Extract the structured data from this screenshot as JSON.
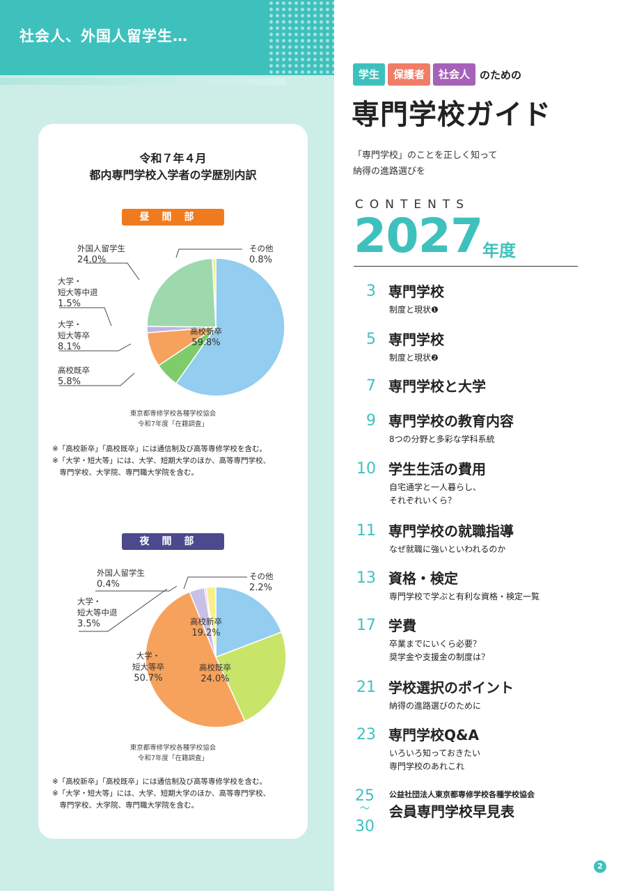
{
  "left": {
    "header_title": "社会人、外国人留学生…",
    "card_title_line1": "令和７年４月",
    "card_title_line2": "都内専門学校入学者の学歴別内訳",
    "day": {
      "label": "昼間部",
      "label_color": "#f07b1e",
      "labels": {
        "foreign": "外国人留学生\n",
        "foreign_val": "24.0%",
        "other": "その他\n",
        "other_val": "0.8%",
        "dropout": "大学・\n短大等中退\n",
        "dropout_val": "1.5%",
        "univ": "大学・\n短大等卒\n",
        "univ_val": "8.1%",
        "grad": "高校既卒\n",
        "grad_val": "5.8%",
        "new": "高校新卒\n",
        "new_val": "59.8%"
      },
      "source_line1": "東京都専修学校各種学校協会",
      "source_line2": "令和7年度「在籍調査」",
      "note1": "※「高校新卒」「高校既卒」には通信制及び高等専修学校を含む。",
      "note2": "※「大学・短大等」には、大学、短期大学のほか、高等専門学校、",
      "note3": "　専門学校、大学院、専門職大学院を含む。"
    },
    "night": {
      "label": "夜間部",
      "label_color": "#4b4a8c",
      "labels": {
        "foreign": "外国人留学生\n",
        "foreign_val": "0.4%",
        "other": "その他\n",
        "other_val": "2.2%",
        "dropout": "大学・\n短大等中退\n",
        "dropout_val": "3.5%",
        "univ": "大学・\n短大等卒\n",
        "univ_val": "50.7%",
        "grad": "高校既卒\n",
        "grad_val": "24.0%",
        "new": "高校新卒\n",
        "new_val": "19.2%"
      },
      "source_line1": "東京都専修学校各種学校協会",
      "source_line2": "令和7年度「在籍調査」",
      "note1": "※「高校新卒」「高校既卒」には通信制及び高等専修学校を含む。",
      "note2": "※「大学・短大等」には、大学、短期大学のほか、高等専門学校、",
      "note3": "　専門学校、大学院、専門職大学院を含む。"
    }
  },
  "chart_data": [
    {
      "type": "pie",
      "title": "昼間部",
      "categories": [
        "高校新卒",
        "高校既卒",
        "大学・短大等卒",
        "大学・短大等中退",
        "外国人留学生",
        "その他"
      ],
      "values": [
        59.8,
        5.8,
        8.1,
        1.5,
        24.0,
        0.8
      ],
      "colors": [
        "#93cdf0",
        "#7fcc6a",
        "#f6a25c",
        "#bcb6e0",
        "#9dd9ad",
        "#f4ee8e"
      ]
    },
    {
      "type": "pie",
      "title": "夜間部",
      "categories": [
        "高校新卒",
        "高校既卒",
        "大学・短大等卒",
        "大学・短大等中退",
        "外国人留学生",
        "その他"
      ],
      "values": [
        19.2,
        24.0,
        50.7,
        3.5,
        0.4,
        2.2
      ],
      "colors": [
        "#93cdf0",
        "#c8e56a",
        "#f6a25c",
        "#c9c0e6",
        "#f3a4c8",
        "#f7ef8c"
      ]
    }
  ],
  "right": {
    "tags": [
      {
        "label": "学生",
        "color": "#3ec1bd"
      },
      {
        "label": "保護者",
        "color": "#ef7d67"
      },
      {
        "label": "社会人",
        "color": "#a662b8"
      }
    ],
    "tag_suffix": "のための",
    "title": "専門学校ガイド",
    "subtitle_line1": "「専門学校」のことを正しく知って",
    "subtitle_line2": "納得の進路選びを",
    "contents_label": "CONTENTS",
    "year": "2027",
    "year_suffix": "年度",
    "toc": [
      {
        "num": "3",
        "title": "専門学校",
        "desc": "制度と現状❶"
      },
      {
        "num": "5",
        "title": "専門学校",
        "desc": "制度と現状❷"
      },
      {
        "num": "7",
        "title": "専門学校と大学",
        "desc": ""
      },
      {
        "num": "9",
        "title": "専門学校の教育内容",
        "desc": "8つの分野と多彩な学科系統"
      },
      {
        "num": "10",
        "title": "学生生活の費用",
        "desc": "自宅通学と一人暮らし、\nそれぞれいくら？"
      },
      {
        "num": "11",
        "title": "専門学校の就職指導",
        "desc": "なぜ就職に強いといわれるのか"
      },
      {
        "num": "13",
        "title": "資格・検定",
        "desc": "専門学校で学ぶと有利な資格・検定一覧"
      },
      {
        "num": "17",
        "title": "学費",
        "desc": "卒業までにいくら必要？\n奨学金や支援金の制度は？"
      },
      {
        "num": "21",
        "title": "学校選択のポイント",
        "desc": "納得の進路選びのために"
      },
      {
        "num": "23",
        "title": "専門学校Q&A",
        "desc": "いろいろ知っておきたい\n専門学校のあれこれ"
      }
    ],
    "last_num_start": "25",
    "last_num_sep": "〜",
    "last_num_end": "30",
    "last_org": "公益社団法人東京都専修学校各種学校協会",
    "last_title": "会員専門学校早見表",
    "page_number": "2"
  }
}
